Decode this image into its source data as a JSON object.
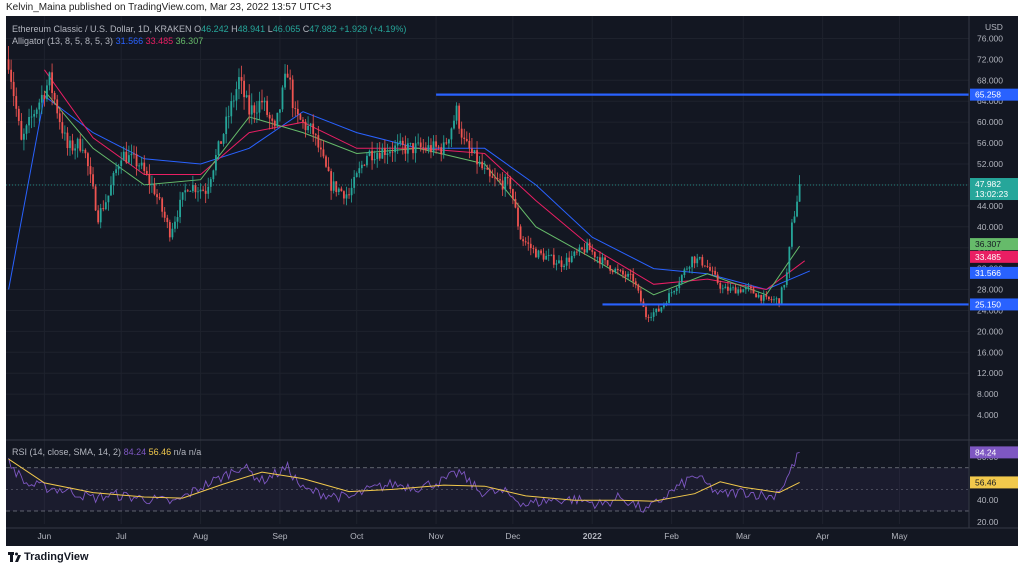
{
  "header": {
    "publisher": "Kelvin_Maina published on TradingView.com, Mar 23, 2022 13:57 UTC+3"
  },
  "footer": {
    "brand": "TradingView"
  },
  "legend": {
    "symbol": "Ethereum Classic / U.S. Dollar, 1D, KRAKEN",
    "ohlc": [
      {
        "label": "O",
        "value": "46.242"
      },
      {
        "label": "H",
        "value": "48.941"
      },
      {
        "label": "L",
        "value": "46.065"
      },
      {
        "label": "C",
        "value": "47.982"
      }
    ],
    "change": "+1.929 (+4.19%)",
    "alligator_label": "Alligator (13, 8, 5, 8, 5, 3)",
    "alligator_values": [
      "31.566",
      "33.485",
      "36.307"
    ],
    "rsi_label": "RSI (14, close, SMA, 14, 2)",
    "rsi_values": [
      "84.24",
      "56.46",
      "n/a",
      "n/a"
    ]
  },
  "colors": {
    "background": "#131722",
    "up": "#26a69a",
    "down": "#ef5350",
    "jaw": "#2962ff",
    "teeth": "#e91e63",
    "lips": "#66bb6a",
    "rsi": "#7e57c2",
    "rsi_ma": "#f2c94c",
    "level": "#2962ff"
  },
  "chart_data": [
    {
      "type": "candlestick",
      "title": "Ethereum Classic / U.S. Dollar, 1D, KRAKEN",
      "currency": "USD",
      "ylim": [
        0,
        78
      ],
      "y_ticks": [
        "76.000",
        "72.000",
        "68.000",
        "64.000",
        "60.000",
        "56.000",
        "52.000",
        "48.000",
        "44.000",
        "40.000",
        "36.000",
        "32.000",
        "28.000",
        "24.000",
        "20.000",
        "16.000",
        "12.000",
        "8.000",
        "4.000"
      ],
      "x_ticks": [
        "Jun",
        "Jul",
        "Aug",
        "Sep",
        "Oct",
        "Nov",
        "Dec",
        "2022",
        "Feb",
        "Mar",
        "Apr",
        "May"
      ],
      "grid": true,
      "last_price": {
        "value": "47.982",
        "countdown": "13:02:23"
      },
      "horizontal_levels": [
        {
          "value": 65.258,
          "label": "65.258",
          "from": "2021-11-01",
          "to": "end"
        },
        {
          "value": 25.15,
          "label": "25.150",
          "from": "2022-01-05",
          "to": "end"
        }
      ],
      "price_labels": [
        {
          "value": 36.307,
          "label": "36.307",
          "series": "Lips"
        },
        {
          "value": 33.485,
          "label": "33.485",
          "series": "Teeth"
        },
        {
          "value": 31.566,
          "label": "31.566",
          "series": "Jaw"
        }
      ],
      "close_path": [
        [
          "2021-05-18",
          72
        ],
        [
          "2021-05-23",
          56
        ],
        [
          "2021-05-28",
          62
        ],
        [
          "2021-06-03",
          68
        ],
        [
          "2021-06-10",
          55
        ],
        [
          "2021-06-16",
          56
        ],
        [
          "2021-06-22",
          42
        ],
        [
          "2021-06-26",
          46
        ],
        [
          "2021-07-01",
          54
        ],
        [
          "2021-07-08",
          52
        ],
        [
          "2021-07-14",
          47
        ],
        [
          "2021-07-20",
          39
        ],
        [
          "2021-07-27",
          48
        ],
        [
          "2021-08-03",
          47
        ],
        [
          "2021-08-10",
          58
        ],
        [
          "2021-08-16",
          68
        ],
        [
          "2021-08-20",
          62
        ],
        [
          "2021-08-25",
          64
        ],
        [
          "2021-08-30",
          58
        ],
        [
          "2021-09-04",
          70
        ],
        [
          "2021-09-07",
          61
        ],
        [
          "2021-09-14",
          58
        ],
        [
          "2021-09-21",
          48
        ],
        [
          "2021-09-28",
          46
        ],
        [
          "2021-10-05",
          54
        ],
        [
          "2021-10-15",
          55
        ],
        [
          "2021-10-25",
          55
        ],
        [
          "2021-11-04",
          55
        ],
        [
          "2021-11-09",
          62
        ],
        [
          "2021-11-12",
          56
        ],
        [
          "2021-11-22",
          49
        ],
        [
          "2021-11-30",
          48
        ],
        [
          "2021-12-04",
          38
        ],
        [
          "2021-12-10",
          35
        ],
        [
          "2021-12-20",
          33
        ],
        [
          "2021-12-30",
          36
        ],
        [
          "2022-01-06",
          33
        ],
        [
          "2022-01-12",
          31
        ],
        [
          "2022-01-17",
          30
        ],
        [
          "2022-01-22",
          23
        ],
        [
          "2022-01-27",
          24
        ],
        [
          "2022-02-03",
          29
        ],
        [
          "2022-02-09",
          34
        ],
        [
          "2022-02-14",
          33
        ],
        [
          "2022-02-21",
          28
        ],
        [
          "2022-02-26",
          28
        ],
        [
          "2022-03-03",
          28
        ],
        [
          "2022-03-10",
          26
        ],
        [
          "2022-03-15",
          26
        ],
        [
          "2022-03-18",
          31
        ],
        [
          "2022-03-20",
          40
        ],
        [
          "2022-03-23",
          47.982
        ]
      ],
      "series": [
        {
          "name": "Jaw",
          "values": [
            [
              "2021-05-18",
              28
            ],
            [
              "2021-06-01",
              65
            ],
            [
              "2021-06-20",
              58
            ],
            [
              "2021-07-10",
              53
            ],
            [
              "2021-08-01",
              52
            ],
            [
              "2021-08-20",
              55
            ],
            [
              "2021-09-10",
              62
            ],
            [
              "2021-10-01",
              58
            ],
            [
              "2021-10-25",
              55
            ],
            [
              "2021-11-20",
              55
            ],
            [
              "2021-12-10",
              48
            ],
            [
              "2022-01-01",
              38
            ],
            [
              "2022-01-25",
              32
            ],
            [
              "2022-02-15",
              31
            ],
            [
              "2022-03-10",
              28
            ],
            [
              "2022-03-27",
              31.566
            ]
          ]
        },
        {
          "name": "Teeth",
          "values": [
            [
              "2021-06-01",
              70
            ],
            [
              "2021-06-20",
              57
            ],
            [
              "2021-07-10",
              50
            ],
            [
              "2021-08-01",
              50
            ],
            [
              "2021-08-20",
              58
            ],
            [
              "2021-09-10",
              60
            ],
            [
              "2021-10-01",
              55
            ],
            [
              "2021-10-25",
              55
            ],
            [
              "2021-11-20",
              54
            ],
            [
              "2021-12-10",
              45
            ],
            [
              "2022-01-01",
              36
            ],
            [
              "2022-01-25",
              29
            ],
            [
              "2022-02-15",
              30
            ],
            [
              "2022-03-10",
              28
            ],
            [
              "2022-03-25",
              33.485
            ]
          ]
        },
        {
          "name": "Lips",
          "values": [
            [
              "2021-06-01",
              66
            ],
            [
              "2021-06-20",
              55
            ],
            [
              "2021-07-10",
              48
            ],
            [
              "2021-08-01",
              49
            ],
            [
              "2021-08-20",
              61
            ],
            [
              "2021-09-10",
              58
            ],
            [
              "2021-10-01",
              54
            ],
            [
              "2021-10-25",
              55
            ],
            [
              "2021-11-20",
              52
            ],
            [
              "2021-12-10",
              40
            ],
            [
              "2022-01-01",
              34
            ],
            [
              "2022-01-25",
              27
            ],
            [
              "2022-02-15",
              31
            ],
            [
              "2022-03-10",
              27
            ],
            [
              "2022-03-23",
              36.307
            ]
          ]
        }
      ]
    },
    {
      "type": "line",
      "title": "RSI (14, close, SMA, 14, 2)",
      "ylim": [
        18,
        92
      ],
      "y_ticks": [
        "80.00",
        "40.00",
        "20.00"
      ],
      "bands": [
        70,
        30
      ],
      "last_value": "84.24",
      "ma_last_value": "56.46",
      "series": [
        {
          "name": "RSI",
          "values": [
            [
              "2021-05-18",
              75
            ],
            [
              "2021-05-25",
              55
            ],
            [
              "2021-06-01",
              52
            ],
            [
              "2021-06-10",
              49
            ],
            [
              "2021-06-20",
              42
            ],
            [
              "2021-06-28",
              45
            ],
            [
              "2021-07-05",
              43
            ],
            [
              "2021-07-15",
              40
            ],
            [
              "2021-07-22",
              38
            ],
            [
              "2021-08-01",
              52
            ],
            [
              "2021-08-10",
              62
            ],
            [
              "2021-08-17",
              72
            ],
            [
              "2021-08-25",
              58
            ],
            [
              "2021-09-04",
              70
            ],
            [
              "2021-09-10",
              50
            ],
            [
              "2021-09-20",
              45
            ],
            [
              "2021-09-28",
              42
            ],
            [
              "2021-10-06",
              50
            ],
            [
              "2021-10-15",
              55
            ],
            [
              "2021-10-25",
              52
            ],
            [
              "2021-11-04",
              58
            ],
            [
              "2021-11-10",
              66
            ],
            [
              "2021-11-18",
              48
            ],
            [
              "2021-11-28",
              47
            ],
            [
              "2021-12-06",
              36
            ],
            [
              "2021-12-15",
              40
            ],
            [
              "2021-12-25",
              41
            ],
            [
              "2022-01-05",
              36
            ],
            [
              "2022-01-12",
              43
            ],
            [
              "2022-01-22",
              30
            ],
            [
              "2022-02-01",
              48
            ],
            [
              "2022-02-10",
              63
            ],
            [
              "2022-02-20",
              45
            ],
            [
              "2022-03-01",
              48
            ],
            [
              "2022-03-12",
              43
            ],
            [
              "2022-03-17",
              55
            ],
            [
              "2022-03-20",
              70
            ],
            [
              "2022-03-23",
              84.24
            ]
          ]
        },
        {
          "name": "MA",
          "values": [
            [
              "2021-05-18",
              78
            ],
            [
              "2021-06-01",
              56
            ],
            [
              "2021-06-20",
              47
            ],
            [
              "2021-07-10",
              43
            ],
            [
              "2021-07-25",
              42
            ],
            [
              "2021-08-10",
              55
            ],
            [
              "2021-08-25",
              66
            ],
            [
              "2021-09-10",
              60
            ],
            [
              "2021-09-28",
              48
            ],
            [
              "2021-10-15",
              50
            ],
            [
              "2021-11-04",
              54
            ],
            [
              "2021-11-20",
              53
            ],
            [
              "2021-12-06",
              44
            ],
            [
              "2021-12-25",
              40
            ],
            [
              "2022-01-12",
              40
            ],
            [
              "2022-01-25",
              39
            ],
            [
              "2022-02-10",
              46
            ],
            [
              "2022-02-20",
              57
            ],
            [
              "2022-03-01",
              52
            ],
            [
              "2022-03-15",
              47
            ],
            [
              "2022-03-23",
              56.46
            ]
          ]
        }
      ]
    }
  ]
}
